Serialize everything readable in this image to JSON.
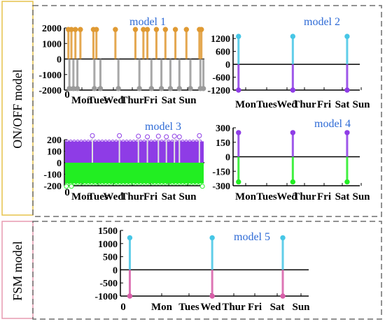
{
  "group_labels": {
    "onoff": "ON/OFF model",
    "fsm": "FSM model"
  },
  "colors": {
    "onoff_border": "#e6c24a",
    "fsm_border": "#e79ab0",
    "model_title": "#2e6bd6",
    "dashed_frame": "#6e6e6e",
    "orange": "#e09a33",
    "gray": "#9a9a9a",
    "cyan": "#46c6e6",
    "purple": "#8e3ce6",
    "green": "#22ee22",
    "magenta": "#d85ea8"
  },
  "day_labels": [
    "Mon",
    "Tues",
    "Wed",
    "Thur",
    "Fri",
    "Sat",
    "Sun"
  ],
  "chart_data": [
    {
      "type": "stem",
      "title": "model 1",
      "ylim": [
        -2000,
        2000
      ],
      "yticks": [
        -2000,
        -1000,
        0,
        1000,
        2000
      ],
      "xlim": [
        0,
        7
      ],
      "x0_label": "0",
      "xtick_labels": [
        "Mon",
        "Tues",
        "Wed",
        "Thur",
        "Fri",
        "Sat",
        "Sun"
      ],
      "series": [
        {
          "color": "orange",
          "values": [
            [
              0.2,
              1900
            ],
            [
              0.35,
              1900
            ],
            [
              0.55,
              1900
            ],
            [
              0.8,
              1900
            ],
            [
              1.45,
              1900
            ],
            [
              1.6,
              1900
            ],
            [
              2.55,
              1900
            ],
            [
              3.55,
              1900
            ],
            [
              3.95,
              1900
            ],
            [
              4.15,
              1900
            ],
            [
              4.6,
              1900
            ],
            [
              5.05,
              1900
            ],
            [
              5.55,
              1900
            ],
            [
              6.1,
              1900
            ],
            [
              6.75,
              1900
            ],
            [
              6.85,
              1900
            ]
          ]
        },
        {
          "color": "gray",
          "values": [
            [
              0.25,
              -1900
            ],
            [
              0.45,
              -1900
            ],
            [
              0.65,
              -1900
            ],
            [
              1.5,
              -1900
            ],
            [
              1.8,
              -1900
            ],
            [
              2.7,
              -1900
            ],
            [
              3.75,
              -1900
            ],
            [
              4.35,
              -1900
            ],
            [
              4.85,
              -1900
            ],
            [
              5.3,
              -1900
            ],
            [
              5.75,
              -1900
            ],
            [
              6.3,
              -1900
            ],
            [
              6.8,
              -1900
            ],
            [
              6.95,
              -1900
            ]
          ]
        }
      ]
    },
    {
      "type": "stem",
      "title": "model 2",
      "ylim": [
        -1200,
        1400
      ],
      "yticks": [
        -1200,
        -600,
        0,
        600,
        1200
      ],
      "xlim": [
        0,
        7
      ],
      "x0_label": "",
      "xtick_labels": [
        "Mon",
        "Tues",
        "Wed",
        "Thur",
        "Fri",
        "Sat",
        "Sun"
      ],
      "series": [
        {
          "color": "cyan",
          "values": [
            [
              0.3,
              1300
            ],
            [
              3.3,
              1300
            ],
            [
              6.3,
              1300
            ]
          ]
        },
        {
          "color": "purple",
          "values": [
            [
              0.3,
              -1200
            ],
            [
              3.3,
              -1200
            ],
            [
              6.3,
              -1200
            ]
          ]
        }
      ]
    },
    {
      "type": "dense-stem",
      "title": "model 3",
      "ylim": [
        -200,
        200
      ],
      "yticks": [
        -200,
        -100,
        0,
        100,
        200
      ],
      "xlim": [
        0,
        7
      ],
      "x0_label": "0",
      "xtick_labels": [
        "Mon",
        "Tues",
        "Wed",
        "Thur",
        "Fri",
        "Sat",
        "Sun"
      ],
      "positive_band": 185,
      "negative_band": -180,
      "peaks": [
        [
          1.4,
          235
        ],
        [
          2.75,
          235
        ],
        [
          3.7,
          230
        ],
        [
          4.15,
          225
        ],
        [
          4.7,
          230
        ],
        [
          5.1,
          225
        ],
        [
          5.5,
          230
        ],
        [
          5.75,
          225
        ],
        [
          6.75,
          235
        ]
      ],
      "troughs": [
        [
          0.1,
          -205
        ],
        [
          0.35,
          -205
        ],
        [
          6.9,
          -205
        ]
      ],
      "series": [
        {
          "color": "purple",
          "values": [
            185
          ]
        },
        {
          "color": "green",
          "values": [
            -180
          ]
        }
      ]
    },
    {
      "type": "stem",
      "title": "model 4",
      "ylim": [
        -300,
        300
      ],
      "yticks": [
        -300,
        -150,
        0,
        150,
        300
      ],
      "xlim": [
        0,
        7
      ],
      "x0_label": "",
      "xtick_labels": [
        "Mon",
        "Tues",
        "Wed",
        "Thur",
        "Fri",
        "Sat",
        "Sun"
      ],
      "series": [
        {
          "color": "purple",
          "values": [
            [
              0.3,
              250
            ],
            [
              3.3,
              250
            ],
            [
              6.3,
              250
            ]
          ]
        },
        {
          "color": "green",
          "values": [
            [
              0.3,
              -260
            ],
            [
              3.3,
              -260
            ],
            [
              6.3,
              -260
            ]
          ]
        }
      ]
    },
    {
      "type": "stem",
      "title": "model 5",
      "ylim": [
        -1000,
        1500
      ],
      "yticks": [
        -1000,
        -500,
        0,
        500,
        1000,
        1500
      ],
      "xlim": [
        0,
        8
      ],
      "x0_label": "0",
      "xtick_labels": [
        "Mon",
        "Tues",
        "Wed",
        "Thur",
        "Fri",
        "Sat",
        "Sun"
      ],
      "series": [
        {
          "color": "cyan",
          "values": [
            [
              0.4,
              1220
            ],
            [
              3.9,
              1220
            ],
            [
              6.9,
              1220
            ]
          ]
        },
        {
          "color": "magenta",
          "values": [
            [
              0.4,
              -1000
            ],
            [
              3.9,
              -1000
            ],
            [
              6.9,
              -1000
            ]
          ]
        }
      ]
    }
  ]
}
